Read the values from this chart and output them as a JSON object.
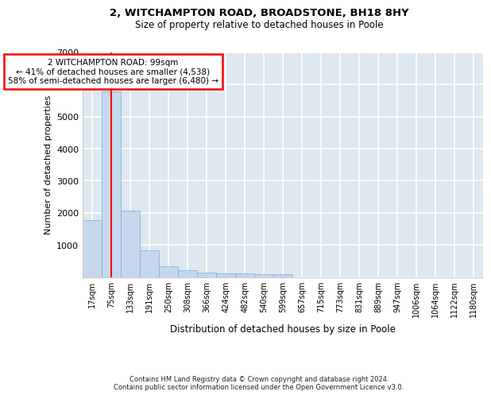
{
  "title1": "2, WITCHAMPTON ROAD, BROADSTONE, BH18 8HY",
  "title2": "Size of property relative to detached houses in Poole",
  "xlabel": "Distribution of detached houses by size in Poole",
  "ylabel": "Number of detached properties",
  "footer1": "Contains HM Land Registry data © Crown copyright and database right 2024.",
  "footer2": "Contains public sector information licensed under the Open Government Licence v3.0.",
  "bin_labels": [
    "17sqm",
    "75sqm",
    "133sqm",
    "191sqm",
    "250sqm",
    "308sqm",
    "366sqm",
    "424sqm",
    "482sqm",
    "540sqm",
    "599sqm",
    "657sqm",
    "715sqm",
    "773sqm",
    "831sqm",
    "889sqm",
    "947sqm",
    "1006sqm",
    "1064sqm",
    "1122sqm",
    "1180sqm"
  ],
  "bar_values": [
    1780,
    5780,
    2060,
    820,
    340,
    210,
    130,
    115,
    105,
    80,
    75,
    0,
    0,
    0,
    0,
    0,
    0,
    0,
    0,
    0,
    0
  ],
  "bar_color": "#c5d8ee",
  "bar_edge_color": "#7aadd4",
  "red_line_x": 1,
  "annotation_title": "2 WITCHAMPTON ROAD: 99sqm",
  "annotation_line1": "← 41% of detached houses are smaller (4,538)",
  "annotation_line2": "58% of semi-detached houses are larger (6,480) →",
  "annotation_box_facecolor": "white",
  "annotation_box_edgecolor": "red",
  "ylim": [
    0,
    7000
  ],
  "yticks": [
    0,
    1000,
    2000,
    3000,
    4000,
    5000,
    6000,
    7000
  ],
  "background_color": "#dde8f0",
  "grid_color": "white"
}
